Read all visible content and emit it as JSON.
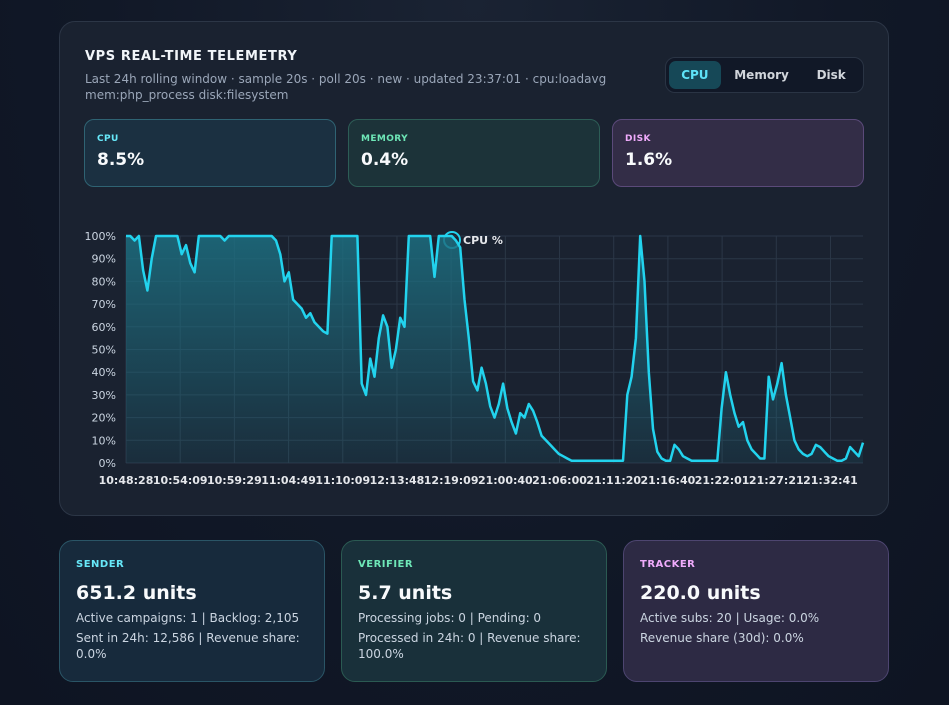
{
  "header": {
    "title": "VPS REAL-TIME TELEMETRY",
    "subtitle": "Last 24h rolling window · sample 20s · poll 20s · new · updated 23:37:01 · cpu:loadavg mem:php_process disk:filesystem"
  },
  "tabs": [
    {
      "label": "CPU",
      "active": true
    },
    {
      "label": "Memory",
      "active": false
    },
    {
      "label": "Disk",
      "active": false
    }
  ],
  "metrics": {
    "cpu": {
      "label": "CPU",
      "value": "8.5%"
    },
    "memory": {
      "label": "MEMORY",
      "value": "0.4%"
    },
    "disk": {
      "label": "DISK",
      "value": "1.6%"
    }
  },
  "chart_data": {
    "type": "area",
    "legend": "CPU %",
    "legend_position": "top-center",
    "ylim": [
      0,
      100
    ],
    "y_ticks": [
      "0%",
      "10%",
      "20%",
      "30%",
      "40%",
      "50%",
      "60%",
      "70%",
      "80%",
      "90%",
      "100%"
    ],
    "x_ticks": [
      "10:48:28",
      "10:54:09",
      "10:59:29",
      "11:04:49",
      "11:10:09",
      "12:13:48",
      "12:19:09",
      "21:00:40",
      "21:06:00",
      "21:11:20",
      "21:16:40",
      "21:22:01",
      "21:27:21",
      "21:32:41"
    ],
    "grid": true,
    "colors": {
      "line": "#22d3ee",
      "fill": "#1d6e80",
      "grid": "#2b3747"
    },
    "series": [
      {
        "name": "CPU %",
        "values": [
          100,
          100,
          98,
          100,
          85,
          76,
          90,
          100,
          100,
          100,
          100,
          100,
          100,
          92,
          96,
          88,
          84,
          100,
          100,
          100,
          100,
          100,
          100,
          98,
          100,
          100,
          100,
          100,
          100,
          100,
          100,
          100,
          100,
          100,
          100,
          98,
          92,
          80,
          84,
          72,
          70,
          68,
          64,
          66,
          62,
          60,
          58,
          57,
          100,
          100,
          100,
          100,
          100,
          100,
          100,
          35,
          30,
          46,
          38,
          55,
          65,
          60,
          42,
          50,
          64,
          60,
          100,
          100,
          100,
          100,
          100,
          100,
          82,
          100,
          100,
          100,
          100,
          98,
          95,
          72,
          55,
          36,
          32,
          42,
          35,
          25,
          20,
          26,
          35,
          24,
          18,
          13,
          22,
          20,
          26,
          23,
          18,
          12,
          10,
          8,
          6,
          4,
          3,
          2,
          1,
          1,
          1,
          1,
          1,
          1,
          1,
          1,
          1,
          1,
          1,
          1,
          1,
          30,
          38,
          55,
          100,
          80,
          40,
          15,
          5,
          2,
          1,
          1,
          8,
          6,
          3,
          2,
          1,
          1,
          1,
          1,
          1,
          1,
          1,
          24,
          40,
          30,
          22,
          16,
          18,
          10,
          6,
          4,
          2,
          2,
          38,
          28,
          35,
          44,
          30,
          20,
          10,
          6,
          4,
          3,
          4,
          8,
          7,
          5,
          3,
          2,
          1,
          1,
          2,
          7,
          5,
          3,
          9
        ]
      }
    ]
  },
  "cards": {
    "sender": {
      "label": "SENDER",
      "value": "651.2 units",
      "line1": "Active campaigns: 1 | Backlog: 2,105",
      "line2": "Sent in 24h: 12,586 | Revenue share: 0.0%"
    },
    "verifier": {
      "label": "VERIFIER",
      "value": "5.7 units",
      "line1": "Processing jobs: 0 | Pending: 0",
      "line2": "Processed in 24h: 0 | Revenue share: 100.0%"
    },
    "tracker": {
      "label": "TRACKER",
      "value": "220.0 units",
      "line1": "Active subs: 20 | Usage: 0.0%",
      "line2": "Revenue share (30d): 0.0%"
    }
  }
}
